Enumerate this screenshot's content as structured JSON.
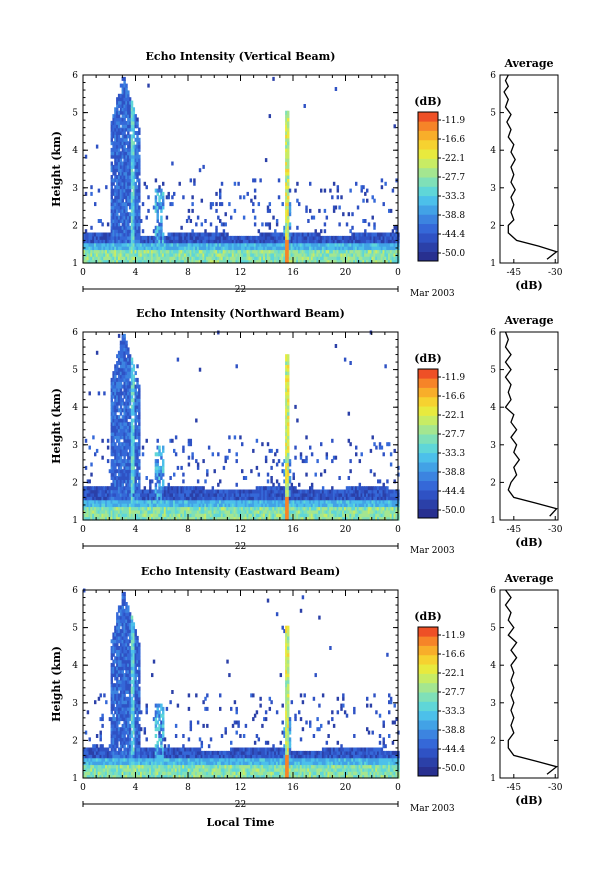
{
  "colormap": [
    "#283090",
    "#2b40a8",
    "#2f52c4",
    "#3568d8",
    "#3c84e0",
    "#42a2e6",
    "#4cc0ea",
    "#5fd6d8",
    "#7fe0b8",
    "#a4e690",
    "#c8ec64",
    "#e8ea3e",
    "#f6d230",
    "#f8ae2a",
    "#f68428",
    "#ee5026"
  ],
  "colorbar": {
    "unit": "(dB)",
    "ticks": [
      "-11.9",
      "-16.6",
      "-22.1",
      "-27.7",
      "-33.3",
      "-38.8",
      "-44.4",
      "-50.0"
    ]
  },
  "date_label": "Mar 2003",
  "x_title": "Local Time",
  "chart_data": [
    {
      "type": "heatmap",
      "title": "Echo Intensity (Vertical Beam)",
      "ylabel": "Height (km)",
      "xlabel": "Local Time",
      "x_ticks": [
        "0",
        "4",
        "8",
        "12",
        "16",
        "20",
        "0"
      ],
      "y_ticks": [
        "1",
        "2",
        "3",
        "4",
        "5",
        "6"
      ],
      "day_label": "22",
      "xlim": [
        0,
        24
      ],
      "ylim": [
        1,
        6
      ],
      "zlim": [
        -50.0,
        -11.9
      ],
      "colorbar_unit": "dB",
      "average": {
        "title": "Average",
        "xlabel": "(dB)",
        "x_ticks": [
          "-45",
          "-30"
        ],
        "y_ticks": [
          "1",
          "2",
          "3",
          "4",
          "5",
          "6"
        ],
        "xlim": [
          -50,
          -29
        ],
        "profile": [
          [
            -33,
            1.1
          ],
          [
            -29.5,
            1.3
          ],
          [
            -36,
            1.45
          ],
          [
            -44,
            1.6
          ],
          [
            -47,
            1.8
          ],
          [
            -47,
            2.0
          ],
          [
            -45,
            2.15
          ],
          [
            -46,
            2.35
          ],
          [
            -45,
            2.55
          ],
          [
            -46,
            2.75
          ],
          [
            -44.5,
            2.95
          ],
          [
            -46,
            3.15
          ],
          [
            -45,
            3.35
          ],
          [
            -46,
            3.55
          ],
          [
            -44.5,
            3.75
          ],
          [
            -46,
            3.95
          ],
          [
            -45,
            4.15
          ],
          [
            -47,
            4.35
          ],
          [
            -46,
            4.55
          ],
          [
            -47.5,
            4.75
          ],
          [
            -46,
            4.95
          ],
          [
            -48,
            5.15
          ],
          [
            -47,
            5.35
          ],
          [
            -48.5,
            5.55
          ],
          [
            -47,
            5.7
          ],
          [
            -48,
            5.85
          ],
          [
            -47,
            6.0
          ]
        ]
      }
    },
    {
      "type": "heatmap",
      "title": "Echo Intensity (Northward Beam)",
      "ylabel": "Height (km)",
      "xlabel": "Local Time",
      "x_ticks": [
        "0",
        "4",
        "8",
        "12",
        "16",
        "20",
        "0"
      ],
      "y_ticks": [
        "1",
        "2",
        "3",
        "4",
        "5",
        "6"
      ],
      "day_label": "22",
      "xlim": [
        0,
        24
      ],
      "ylim": [
        1,
        6
      ],
      "zlim": [
        -50.0,
        -11.9
      ],
      "colorbar_unit": "dB",
      "average": {
        "title": "Average",
        "xlabel": "(dB)",
        "x_ticks": [
          "-45",
          "-30"
        ],
        "y_ticks": [
          "1",
          "2",
          "3",
          "4",
          "5",
          "6"
        ],
        "xlim": [
          -50,
          -29
        ],
        "profile": [
          [
            -32,
            1.1
          ],
          [
            -29.5,
            1.3
          ],
          [
            -37,
            1.45
          ],
          [
            -45,
            1.6
          ],
          [
            -47,
            1.8
          ],
          [
            -46,
            2.0
          ],
          [
            -44,
            2.2
          ],
          [
            -45,
            2.4
          ],
          [
            -43,
            2.6
          ],
          [
            -45,
            2.8
          ],
          [
            -44,
            3.0
          ],
          [
            -46,
            3.2
          ],
          [
            -44,
            3.4
          ],
          [
            -46,
            3.6
          ],
          [
            -45,
            3.8
          ],
          [
            -48,
            4.0
          ],
          [
            -46,
            4.2
          ],
          [
            -47,
            4.4
          ],
          [
            -46,
            4.6
          ],
          [
            -48,
            4.8
          ],
          [
            -46,
            5.0
          ],
          [
            -48,
            5.2
          ],
          [
            -46,
            5.4
          ],
          [
            -48,
            5.6
          ],
          [
            -47,
            5.8
          ],
          [
            -48,
            6.0
          ]
        ]
      }
    },
    {
      "type": "heatmap",
      "title": "Echo Intensity (Eastward Beam)",
      "ylabel": "Height (km)",
      "xlabel": "Local Time",
      "x_ticks": [
        "0",
        "4",
        "8",
        "12",
        "16",
        "20",
        "0"
      ],
      "y_ticks": [
        "1",
        "2",
        "3",
        "4",
        "5",
        "6"
      ],
      "day_label": "22",
      "xlim": [
        0,
        24
      ],
      "ylim": [
        1,
        6
      ],
      "zlim": [
        -50.0,
        -11.9
      ],
      "colorbar_unit": "dB",
      "average": {
        "title": "Average",
        "xlabel": "(dB)",
        "x_ticks": [
          "-45",
          "-30"
        ],
        "y_ticks": [
          "1",
          "2",
          "3",
          "4",
          "5",
          "6"
        ],
        "xlim": [
          -50,
          -29
        ],
        "profile": [
          [
            -33,
            1.1
          ],
          [
            -29.5,
            1.3
          ],
          [
            -37,
            1.45
          ],
          [
            -45,
            1.6
          ],
          [
            -47,
            1.8
          ],
          [
            -47,
            2.0
          ],
          [
            -45,
            2.2
          ],
          [
            -46,
            2.4
          ],
          [
            -45,
            2.6
          ],
          [
            -46,
            2.8
          ],
          [
            -45,
            3.0
          ],
          [
            -46,
            3.2
          ],
          [
            -45,
            3.4
          ],
          [
            -46,
            3.6
          ],
          [
            -45,
            3.8
          ],
          [
            -46,
            4.0
          ],
          [
            -44,
            4.2
          ],
          [
            -46,
            4.4
          ],
          [
            -44,
            4.6
          ],
          [
            -47,
            4.8
          ],
          [
            -45,
            5.0
          ],
          [
            -47,
            5.2
          ],
          [
            -46,
            5.4
          ],
          [
            -48,
            5.6
          ],
          [
            -46,
            5.8
          ],
          [
            -48,
            6.0
          ]
        ]
      }
    }
  ]
}
